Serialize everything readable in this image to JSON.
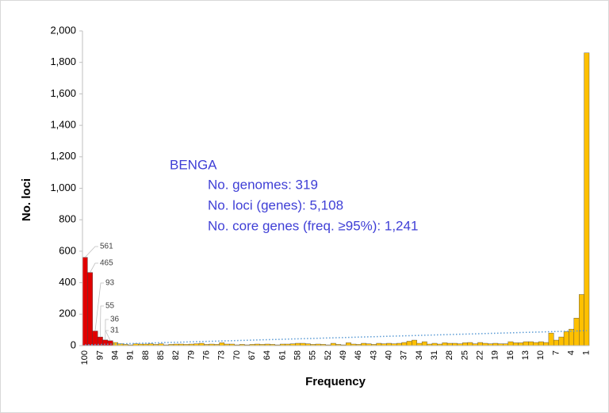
{
  "chart_data": {
    "type": "bar",
    "x_label": "Frequency",
    "y_label": "No. loci",
    "annotations": [
      "BENGA",
      "No. genomes: 319",
      "No. loci (genes): 5,108",
      "No. core genes (freq. ≥95%): 1,241"
    ],
    "annotation_color": "#3f3fd6",
    "categories": [
      "100",
      null,
      null,
      "97",
      null,
      null,
      "94",
      null,
      null,
      "91",
      null,
      null,
      "88",
      null,
      null,
      "85",
      null,
      null,
      "82",
      null,
      null,
      "79",
      null,
      null,
      "76",
      null,
      null,
      "73",
      null,
      null,
      "70",
      null,
      null,
      "67",
      null,
      null,
      "64",
      null,
      null,
      "61",
      null,
      null,
      "58",
      null,
      null,
      "55",
      null,
      null,
      "52",
      null,
      null,
      "49",
      null,
      null,
      "46",
      null,
      null,
      "43",
      null,
      null,
      "40",
      null,
      null,
      "37",
      null,
      null,
      "34",
      null,
      null,
      "31",
      null,
      null,
      "28",
      null,
      null,
      "25",
      null,
      null,
      "22",
      null,
      null,
      "19",
      null,
      null,
      "16",
      null,
      null,
      "13",
      null,
      null,
      "10",
      null,
      null,
      "7",
      null,
      null,
      "4",
      null,
      null,
      "1"
    ],
    "values": [
      561,
      465,
      93,
      55,
      36,
      31,
      20,
      12,
      8,
      5,
      12,
      10,
      10,
      12,
      8,
      12,
      5,
      8,
      10,
      10,
      8,
      10,
      12,
      15,
      8,
      10,
      8,
      18,
      10,
      10,
      5,
      8,
      5,
      8,
      10,
      8,
      10,
      8,
      5,
      10,
      10,
      12,
      15,
      15,
      12,
      8,
      10,
      8,
      5,
      15,
      8,
      5,
      18,
      10,
      8,
      15,
      12,
      8,
      15,
      12,
      15,
      12,
      15,
      20,
      28,
      35,
      15,
      25,
      10,
      15,
      10,
      18,
      15,
      15,
      12,
      18,
      20,
      12,
      20,
      15,
      12,
      15,
      12,
      12,
      25,
      18,
      18,
      25,
      25,
      20,
      25,
      20,
      80,
      35,
      55,
      90,
      105,
      175,
      325,
      1860
    ],
    "value_labels": [
      "561",
      "465",
      "93",
      "55",
      "36",
      "31",
      null,
      null,
      null,
      null,
      null,
      null,
      null,
      null,
      null,
      null,
      null,
      null,
      null,
      null,
      null,
      null,
      null,
      null,
      null,
      null,
      null,
      null,
      null,
      null,
      null,
      null,
      null,
      null,
      null,
      null,
      null,
      null,
      null,
      null,
      null,
      null,
      null,
      null,
      null,
      null,
      null,
      null,
      null,
      null,
      null,
      null,
      null,
      null,
      null,
      null,
      null,
      null,
      null,
      null,
      null,
      null,
      null,
      null,
      null,
      null,
      null,
      null,
      null,
      null,
      null,
      null,
      null,
      null,
      null,
      null,
      null,
      null,
      null,
      null,
      null,
      null,
      null,
      null,
      null,
      null,
      null,
      null,
      null,
      null,
      null,
      null,
      null,
      null,
      null,
      null,
      null,
      null,
      null,
      null
    ],
    "bar_colors": [
      "#e00000",
      "#e00000",
      "#e00000",
      "#e00000",
      "#e00000",
      "#e00000",
      "#ffc000",
      "#ffc000",
      "#ffc000",
      "#ffc000",
      "#ffc000",
      "#ffc000",
      "#ffc000",
      "#ffc000",
      "#ffc000",
      "#ffc000",
      "#ffc000",
      "#ffc000",
      "#ffc000",
      "#ffc000",
      "#ffc000",
      "#ffc000",
      "#ffc000",
      "#ffc000",
      "#ffc000",
      "#ffc000",
      "#ffc000",
      "#ffc000",
      "#ffc000",
      "#ffc000",
      "#ffc000",
      "#ffc000",
      "#ffc000",
      "#ffc000",
      "#ffc000",
      "#ffc000",
      "#ffc000",
      "#ffc000",
      "#ffc000",
      "#ffc000",
      "#ffc000",
      "#ffc000",
      "#ffc000",
      "#ffc000",
      "#ffc000",
      "#ffc000",
      "#ffc000",
      "#ffc000",
      "#ffc000",
      "#ffc000",
      "#ffc000",
      "#ffc000",
      "#ffc000",
      "#ffc000",
      "#ffc000",
      "#ffc000",
      "#ffc000",
      "#ffc000",
      "#ffc000",
      "#ffc000",
      "#ffc000",
      "#ffc000",
      "#ffc000",
      "#ffc000",
      "#ffc000",
      "#ffc000",
      "#ffc000",
      "#ffc000",
      "#ffc000",
      "#ffc000",
      "#ffc000",
      "#ffc000",
      "#ffc000",
      "#ffc000",
      "#ffc000",
      "#ffc000",
      "#ffc000",
      "#ffc000",
      "#ffc000",
      "#ffc000",
      "#ffc000",
      "#ffc000",
      "#ffc000",
      "#ffc000",
      "#ffc000",
      "#ffc000",
      "#ffc000",
      "#ffc000",
      "#ffc000",
      "#ffc000",
      "#ffc000",
      "#ffc000",
      "#ffc000",
      "#ffc000",
      "#ffc000",
      "#ffc000",
      "#ffc000",
      "#ffc000",
      "#ffc000",
      "#ffc000"
    ],
    "trendline": {
      "start": 5,
      "end": 95,
      "color": "#5b9bd5"
    },
    "ylim": [
      0,
      2000
    ],
    "yticks": [
      0,
      200,
      400,
      600,
      800,
      {
        "value": 1000,
        "label": "1,000"
      },
      {
        "value": 1200,
        "label": "1,200"
      },
      {
        "value": 1400,
        "label": "1,400"
      },
      {
        "value": 1600,
        "label": "1,600"
      },
      {
        "value": 1800,
        "label": "1,800"
      },
      {
        "value": 2000,
        "label": "2,000"
      }
    ],
    "grid": false
  }
}
